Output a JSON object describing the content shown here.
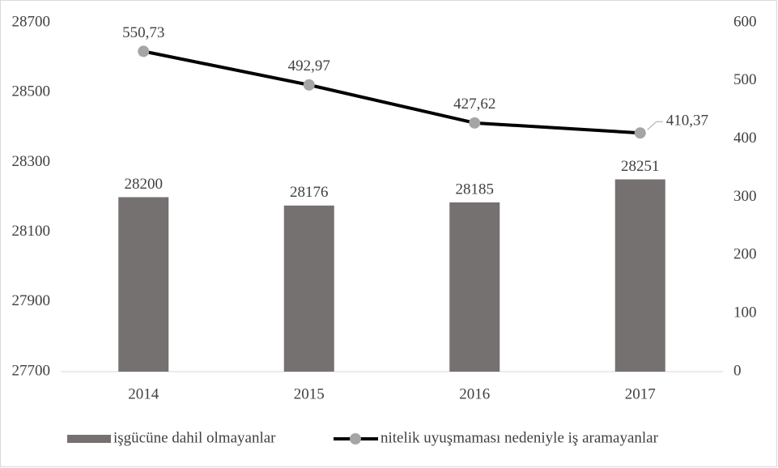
{
  "chart_data": {
    "type": "bar_line",
    "categories": [
      "2014",
      "2015",
      "2016",
      "2017"
    ],
    "series": [
      {
        "name": "işgücüne dahil olmayanlar",
        "type": "bar",
        "color": "#767171",
        "values": [
          28200,
          28176,
          28185,
          28251
        ]
      },
      {
        "name": "nitelik uyuşmaması nedeniyle iş aramayanlar",
        "type": "line",
        "axis": "y2",
        "color": "#000000",
        "marker_color": "#a5a5a5",
        "values": [
          550.73,
          492.97,
          427.62,
          410.37
        ],
        "value_labels": [
          "550,73",
          "492,97",
          "427,62",
          "410,37"
        ]
      }
    ],
    "ylim": [
      27700,
      28700
    ],
    "yticks": [
      27700,
      27900,
      28100,
      28300,
      28500,
      28700
    ],
    "y2lim": [
      0,
      600
    ],
    "y2ticks": [
      0,
      100,
      200,
      300,
      400,
      500,
      600
    ],
    "grid": false,
    "legend": "bottom"
  }
}
